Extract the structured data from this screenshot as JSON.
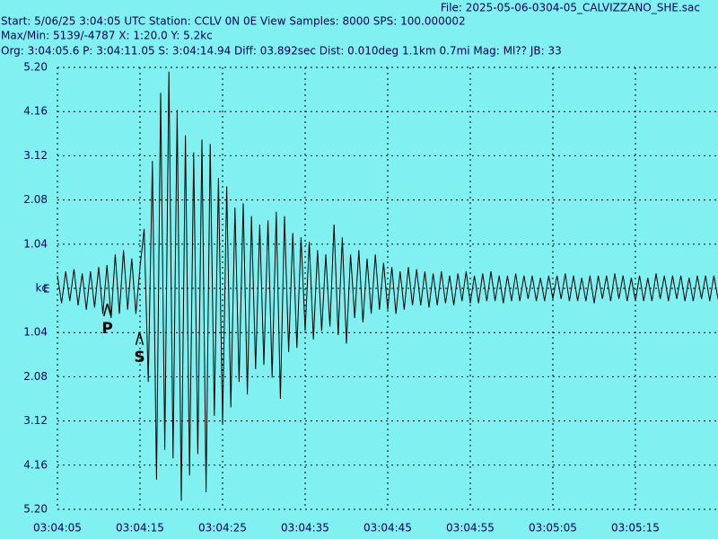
{
  "chart_data": {
    "type": "line",
    "file": "File: 2025-05-06-0304-05_CALVIZZANO_SHE.sac",
    "header": [
      "Start: 5/06/25  3:04:05 UTC Station: CCLV 0N 0E View Samples: 8000  SPS: 100.000002",
      "Max/Min: 5139/-4787 X: 1:20.0 Y: 5.2kc",
      "Org: 3:04:05.6 P: 3:04:11.05 S: 3:04:14.94 Diff: 03.892sec Dist: 0.010deg 1.1km 0.7mi  Mag: Ml?? JB: 33"
    ],
    "channel": "E",
    "color": "#000000",
    "grid": true,
    "xlim": [
      0,
      80
    ],
    "ylim": [
      -5.2,
      5.2
    ],
    "xticks": [
      {
        "value": 0,
        "label": "03:04:05"
      },
      {
        "value": 10,
        "label": "03:04:15"
      },
      {
        "value": 20,
        "label": "03:04:25"
      },
      {
        "value": 30,
        "label": "03:04:35"
      },
      {
        "value": 40,
        "label": "03:04:45"
      },
      {
        "value": 50,
        "label": "03:04:55"
      },
      {
        "value": 60,
        "label": "03:05:05"
      },
      {
        "value": 70,
        "label": "03:05:15"
      }
    ],
    "yticks": [
      {
        "value": 5.2,
        "label": "5.20"
      },
      4.16,
      3.12,
      2.08,
      1.04,
      {
        "value": 0,
        "label": "kc"
      },
      {
        "value": -1.04,
        "label": "1.04"
      },
      {
        "value": -2.08,
        "label": "2.08"
      },
      {
        "value": -3.12,
        "label": "3.12"
      },
      {
        "value": -4.16,
        "label": "4.16"
      },
      {
        "value": -5.2,
        "label": "5.20"
      }
    ],
    "annotations": [
      {
        "text": "P",
        "x": 6.05
      },
      {
        "text": "S",
        "x": 9.94
      }
    ],
    "x": [
      0,
      0.5,
      1,
      1.5,
      2,
      2.5,
      3,
      3.5,
      4,
      4.5,
      5,
      5.5,
      6,
      6.5,
      7,
      7.5,
      8,
      8.5,
      9,
      9.5,
      10,
      10.5,
      11,
      11.5,
      12,
      12.5,
      13,
      13.5,
      14,
      14.5,
      15,
      15.5,
      16,
      16.5,
      17,
      17.5,
      18,
      18.5,
      19,
      19.5,
      20,
      20.5,
      21,
      21.5,
      22,
      22.5,
      23,
      23.5,
      24,
      24.5,
      25,
      25.5,
      26,
      26.5,
      27,
      27.5,
      28,
      28.5,
      29,
      29.5,
      30,
      30.5,
      31,
      31.5,
      32,
      32.5,
      33,
      33.5,
      34,
      34.5,
      35,
      35.5,
      36,
      36.5,
      37,
      37.5,
      38,
      38.5,
      39,
      39.5,
      40,
      40.5,
      41,
      41.5,
      42,
      42.5,
      43,
      43.5,
      44,
      44.5,
      45,
      45.5,
      46,
      46.5,
      47,
      47.5,
      48,
      48.5,
      49,
      49.5,
      50,
      50.5,
      51,
      51.5,
      52,
      52.5,
      53,
      53.5,
      54,
      54.5,
      55,
      55.5,
      56,
      56.5,
      57,
      57.5,
      58,
      58.5,
      59,
      59.5,
      60,
      60.5,
      61,
      61.5,
      62,
      62.5,
      63,
      63.5,
      64,
      64.5,
      65,
      65.5,
      66,
      66.5,
      67,
      67.5,
      68,
      68.5,
      69,
      69.5,
      70,
      70.5,
      71,
      71.5,
      72,
      72.5,
      73,
      73.5,
      74,
      74.5,
      75,
      75.5,
      76,
      76.5,
      77,
      77.5,
      78,
      78.5,
      79,
      79.5,
      80
    ],
    "values": [
      0.3,
      -0.35,
      0.4,
      -0.3,
      0.45,
      -0.4,
      0.35,
      -0.5,
      0.4,
      -0.45,
      0.5,
      -0.6,
      0.55,
      -0.7,
      0.8,
      -0.6,
      0.9,
      -0.5,
      0.7,
      -0.6,
      0.5,
      1.4,
      -2.2,
      3.0,
      -4.5,
      4.6,
      -3.8,
      5.1,
      -4.0,
      4.2,
      -5.0,
      3.6,
      -4.4,
      3.2,
      -3.9,
      3.5,
      -4.8,
      3.4,
      -3.0,
      2.6,
      -3.2,
      2.4,
      -2.8,
      1.9,
      -2.2,
      2.0,
      -2.5,
      1.7,
      -1.9,
      1.5,
      -1.8,
      1.6,
      -2.1,
      1.8,
      -2.6,
      1.7,
      -1.5,
      1.3,
      -1.4,
      1.2,
      -1.0,
      1.1,
      -1.2,
      0.9,
      -1.0,
      0.8,
      -0.9,
      1.5,
      -1.1,
      1.2,
      -1.3,
      0.8,
      -0.7,
      0.9,
      -0.8,
      0.7,
      -0.6,
      0.8,
      -0.5,
      0.6,
      -0.5,
      0.5,
      -0.6,
      0.4,
      -0.5,
      0.5,
      -0.4,
      0.45,
      -0.4,
      0.4,
      -0.45,
      0.35,
      -0.4,
      0.4,
      -0.35,
      0.3,
      -0.4,
      0.35,
      -0.3,
      0.4,
      -0.35,
      0.3,
      -0.35,
      0.35,
      -0.3,
      0.4,
      -0.3,
      0.3,
      -0.35,
      0.3,
      -0.3,
      0.35,
      -0.3,
      0.3,
      -0.25,
      0.3,
      -0.3,
      0.25,
      -0.3,
      0.3,
      -0.25,
      0.3,
      -0.25,
      0.35,
      -0.3,
      0.3,
      -0.3,
      0.25,
      -0.3,
      0.3,
      -0.35,
      0.3,
      -0.25,
      0.3,
      -0.3,
      0.35,
      -0.25,
      0.3,
      -0.3,
      0.25,
      -0.3,
      0.3,
      -0.3,
      0.25,
      -0.3,
      0.35,
      -0.25,
      0.3,
      -0.3,
      0.3,
      -0.25,
      0.3,
      -0.3,
      0.25,
      -0.3,
      0.3,
      -0.25,
      0.3,
      -0.3,
      0.3,
      -0.25
    ]
  }
}
